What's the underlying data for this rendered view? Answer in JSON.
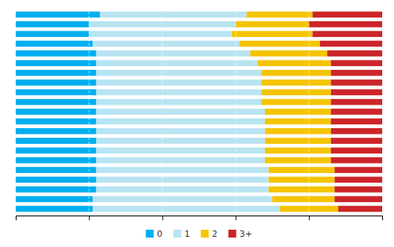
{
  "chart_data": {
    "type": "bar",
    "orientation": "horizontal",
    "stacked": true,
    "categories": [
      null,
      null,
      null,
      null,
      null,
      null,
      null,
      null,
      null,
      null,
      null,
      null,
      null,
      null,
      null,
      null,
      null,
      null,
      null,
      null,
      null
    ],
    "series": [
      {
        "name": "0",
        "color": "#00AEEF",
        "values": [
          23,
          20,
          20,
          21,
          22,
          22,
          22,
          22,
          22,
          22,
          22,
          22,
          22,
          22,
          22,
          22,
          22,
          22,
          22,
          21,
          21
        ]
      },
      {
        "name": "1",
        "color": "#B8E4F2",
        "values": [
          40,
          40,
          39,
          40,
          42,
          44,
          45,
          45,
          45,
          45,
          46,
          46,
          46,
          46,
          46,
          46,
          47,
          47,
          47,
          49,
          51
        ]
      },
      {
        "name": "2",
        "color": "#F5C400",
        "values": [
          18,
          20,
          22,
          22,
          21,
          20,
          19,
          19,
          19,
          19,
          18,
          18,
          18,
          18,
          18,
          18,
          18,
          18,
          18,
          17,
          16
        ]
      },
      {
        "name": "3+",
        "color": "#CC2529",
        "values": [
          19,
          20,
          19,
          17,
          15,
          14,
          14,
          14,
          14,
          14,
          14,
          14,
          14,
          14,
          14,
          14,
          13,
          13,
          13,
          13,
          12
        ]
      }
    ],
    "xlim": [
      0,
      100
    ],
    "xticks": [
      20,
      40,
      60,
      80
    ],
    "grid": true,
    "tick_labels": false,
    "legend": "bottom"
  }
}
